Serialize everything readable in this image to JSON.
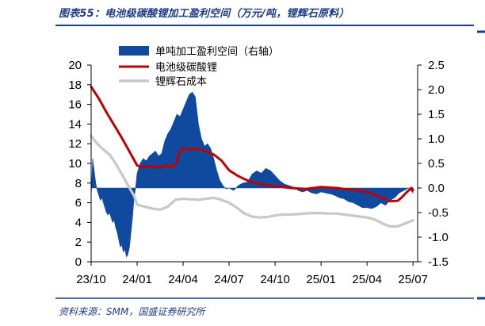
{
  "title": "图表55：电池级碳酸锂加工盈利空间（万元/吨，锂辉石原料）",
  "source": "资料来源：SMM，国盛证券研究所",
  "colors": {
    "title": "#1f3c88",
    "area": "#0f4a9e",
    "carbonate": "#c00000",
    "spodumene": "#c8c8c8",
    "rule": "#1f3c88"
  },
  "chart_data": {
    "type": "line",
    "legend": [
      "单吨加工盈利空间（右轴）",
      "电池级碳酸锂",
      "锂辉石成本"
    ],
    "legend_placement": "top-center",
    "grid": false,
    "x_tick_labels": [
      "23/10",
      "24/01",
      "24/04",
      "24/07",
      "24/10",
      "25/01",
      "25/04",
      "25/07"
    ],
    "x_ticks_t": [
      0,
      3,
      6,
      9,
      12,
      15,
      18,
      21
    ],
    "x_range": [
      0,
      21.3
    ],
    "y_left": {
      "ticks": [
        "0",
        "2",
        "4",
        "6",
        "8",
        "10",
        "12",
        "14",
        "16",
        "18",
        "20"
      ],
      "lim": [
        0,
        20
      ]
    },
    "y_right": {
      "ticks": [
        "-1.5",
        "-1.0",
        "-0.5",
        "0.0",
        "0.5",
        "1.0",
        "1.5",
        "2.0",
        "2.5"
      ],
      "lim": [
        -1.5,
        2.5
      ]
    },
    "series": [
      {
        "name": "单吨加工盈利空间（右轴）",
        "kind": "area",
        "axis": "right",
        "points": [
          [
            0.0,
            -0.2
          ],
          [
            0.1,
            0.6
          ],
          [
            0.2,
            0.35
          ],
          [
            0.3,
            0.1
          ],
          [
            0.4,
            -0.05
          ],
          [
            0.5,
            -0.15
          ],
          [
            0.6,
            -0.25
          ],
          [
            0.7,
            -0.2
          ],
          [
            0.8,
            -0.3
          ],
          [
            0.9,
            -0.4
          ],
          [
            1.0,
            -0.5
          ],
          [
            1.1,
            -0.55
          ],
          [
            1.2,
            -0.5
          ],
          [
            1.3,
            -0.6
          ],
          [
            1.4,
            -0.7
          ],
          [
            1.5,
            -0.65
          ],
          [
            1.6,
            -0.8
          ],
          [
            1.7,
            -0.9
          ],
          [
            1.8,
            -1.05
          ],
          [
            1.9,
            -1.2
          ],
          [
            2.0,
            -1.15
          ],
          [
            2.1,
            -1.3
          ],
          [
            2.2,
            -1.25
          ],
          [
            2.3,
            -1.4
          ],
          [
            2.4,
            -1.35
          ],
          [
            2.5,
            -1.2
          ],
          [
            2.6,
            -0.9
          ],
          [
            2.7,
            -0.6
          ],
          [
            2.8,
            -0.2
          ],
          [
            2.9,
            0.0
          ],
          [
            3.0,
            0.3
          ],
          [
            3.2,
            0.5
          ],
          [
            3.4,
            0.6
          ],
          [
            3.6,
            0.55
          ],
          [
            3.8,
            0.65
          ],
          [
            4.0,
            0.7
          ],
          [
            4.2,
            0.75
          ],
          [
            4.4,
            0.65
          ],
          [
            4.6,
            0.7
          ],
          [
            4.8,
            0.95
          ],
          [
            5.0,
            1.1
          ],
          [
            5.2,
            1.2
          ],
          [
            5.4,
            1.35
          ],
          [
            5.6,
            1.5
          ],
          [
            5.8,
            1.45
          ],
          [
            6.0,
            1.6
          ],
          [
            6.2,
            1.75
          ],
          [
            6.4,
            1.9
          ],
          [
            6.6,
            1.95
          ],
          [
            6.8,
            1.85
          ],
          [
            7.0,
            1.3
          ],
          [
            7.2,
            1.0
          ],
          [
            7.4,
            0.85
          ],
          [
            7.6,
            0.9
          ],
          [
            7.8,
            0.8
          ],
          [
            8.0,
            0.6
          ],
          [
            8.2,
            0.35
          ],
          [
            8.4,
            0.15
          ],
          [
            8.6,
            0.05
          ],
          [
            8.8,
            -0.02
          ],
          [
            9.0,
            0.0
          ],
          [
            9.3,
            -0.05
          ],
          [
            9.6,
            0.05
          ],
          [
            9.9,
            0.1
          ],
          [
            10.2,
            0.12
          ],
          [
            10.5,
            0.28
          ],
          [
            10.8,
            0.35
          ],
          [
            11.1,
            0.3
          ],
          [
            11.4,
            0.4
          ],
          [
            11.7,
            0.35
          ],
          [
            12.0,
            0.25
          ],
          [
            12.3,
            0.15
          ],
          [
            12.6,
            0.08
          ],
          [
            12.9,
            0.05
          ],
          [
            13.2,
            0.02
          ],
          [
            13.5,
            -0.05
          ],
          [
            13.8,
            -0.08
          ],
          [
            14.1,
            -0.05
          ],
          [
            14.4,
            -0.1
          ],
          [
            14.7,
            -0.12
          ],
          [
            15.0,
            -0.08
          ],
          [
            15.3,
            -0.1
          ],
          [
            15.6,
            -0.12
          ],
          [
            15.9,
            -0.15
          ],
          [
            16.2,
            -0.2
          ],
          [
            16.5,
            -0.22
          ],
          [
            16.8,
            -0.28
          ],
          [
            17.1,
            -0.3
          ],
          [
            17.4,
            -0.35
          ],
          [
            17.7,
            -0.4
          ],
          [
            18.0,
            -0.4
          ],
          [
            18.3,
            -0.42
          ],
          [
            18.6,
            -0.38
          ],
          [
            18.9,
            -0.3
          ],
          [
            19.2,
            -0.35
          ],
          [
            19.5,
            -0.25
          ],
          [
            19.8,
            -0.2
          ],
          [
            20.1,
            -0.1
          ],
          [
            20.4,
            -0.05
          ],
          [
            20.7,
            0.0
          ],
          [
            21.0,
            -0.1
          ]
        ]
      },
      {
        "name": "电池级碳酸锂",
        "kind": "line",
        "axis": "left",
        "points": [
          [
            0.0,
            17.8
          ],
          [
            0.5,
            16.6
          ],
          [
            1.0,
            15.2
          ],
          [
            1.5,
            13.9
          ],
          [
            2.0,
            12.6
          ],
          [
            2.5,
            11.2
          ],
          [
            3.0,
            9.8
          ],
          [
            3.3,
            9.6
          ],
          [
            3.8,
            9.7
          ],
          [
            4.5,
            9.6
          ],
          [
            5.0,
            9.8
          ],
          [
            5.2,
            9.6
          ],
          [
            5.5,
            9.9
          ],
          [
            5.8,
            11.2
          ],
          [
            6.0,
            11.5
          ],
          [
            6.5,
            11.4
          ],
          [
            7.0,
            11.5
          ],
          [
            7.5,
            11.2
          ],
          [
            8.0,
            10.9
          ],
          [
            8.5,
            10.3
          ],
          [
            9.0,
            9.3
          ],
          [
            9.5,
            8.8
          ],
          [
            10.0,
            8.4
          ],
          [
            10.5,
            8.1
          ],
          [
            11.0,
            7.9
          ],
          [
            11.5,
            7.8
          ],
          [
            12.0,
            7.7
          ],
          [
            12.5,
            7.6
          ],
          [
            13.0,
            7.5
          ],
          [
            13.5,
            7.45
          ],
          [
            14.0,
            7.4
          ],
          [
            14.5,
            7.5
          ],
          [
            15.0,
            7.6
          ],
          [
            15.5,
            7.55
          ],
          [
            16.0,
            7.5
          ],
          [
            16.5,
            7.4
          ],
          [
            17.0,
            7.3
          ],
          [
            17.5,
            7.25
          ],
          [
            18.0,
            7.1
          ],
          [
            18.5,
            6.8
          ],
          [
            19.0,
            6.5
          ],
          [
            19.5,
            6.15
          ],
          [
            20.0,
            6.2
          ],
          [
            20.3,
            6.6
          ],
          [
            20.6,
            7.1
          ],
          [
            20.9,
            7.5
          ],
          [
            21.0,
            7.3
          ]
        ]
      },
      {
        "name": "锂辉石成本",
        "kind": "line",
        "axis": "left",
        "points": [
          [
            0.0,
            12.8
          ],
          [
            0.4,
            12.0
          ],
          [
            0.8,
            11.4
          ],
          [
            1.2,
            10.9
          ],
          [
            1.6,
            10.0
          ],
          [
            2.0,
            8.9
          ],
          [
            2.4,
            7.8
          ],
          [
            2.8,
            6.7
          ],
          [
            3.0,
            5.8
          ],
          [
            3.5,
            5.6
          ],
          [
            4.0,
            5.4
          ],
          [
            4.5,
            5.3
          ],
          [
            5.0,
            5.6
          ],
          [
            5.5,
            6.3
          ],
          [
            6.0,
            6.4
          ],
          [
            6.5,
            6.35
          ],
          [
            7.0,
            6.3
          ],
          [
            7.5,
            6.4
          ],
          [
            8.0,
            6.5
          ],
          [
            8.5,
            6.3
          ],
          [
            9.0,
            6.0
          ],
          [
            9.5,
            5.5
          ],
          [
            10.0,
            4.9
          ],
          [
            10.5,
            4.6
          ],
          [
            11.0,
            4.5
          ],
          [
            11.5,
            4.55
          ],
          [
            12.0,
            4.7
          ],
          [
            12.5,
            4.8
          ],
          [
            13.0,
            4.8
          ],
          [
            13.5,
            4.85
          ],
          [
            14.0,
            4.9
          ],
          [
            14.5,
            4.95
          ],
          [
            15.0,
            4.95
          ],
          [
            15.5,
            4.9
          ],
          [
            16.0,
            4.9
          ],
          [
            16.5,
            4.8
          ],
          [
            17.0,
            4.7
          ],
          [
            17.5,
            4.6
          ],
          [
            18.0,
            4.5
          ],
          [
            18.5,
            4.3
          ],
          [
            19.0,
            3.9
          ],
          [
            19.5,
            3.6
          ],
          [
            20.0,
            3.6
          ],
          [
            20.5,
            3.9
          ],
          [
            21.0,
            4.2
          ]
        ]
      }
    ]
  }
}
